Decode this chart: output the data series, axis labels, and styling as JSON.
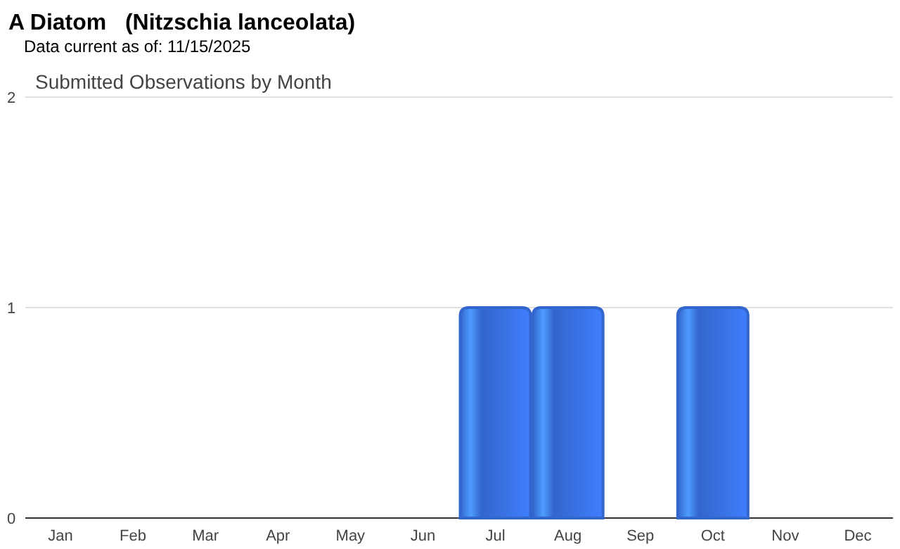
{
  "chart_data": {
    "type": "bar",
    "title": "A Diatom   (Nitzschia lanceolata)",
    "subtitle": "Data current as of: 11/15/2025",
    "annotations": [
      "Submitted Observations by Month"
    ],
    "categories": [
      "Jan",
      "Feb",
      "Mar",
      "Apr",
      "May",
      "Jun",
      "Jul",
      "Aug",
      "Sep",
      "Oct",
      "Nov",
      "Dec"
    ],
    "values": [
      0,
      0,
      0,
      0,
      0,
      0,
      1,
      1,
      0,
      1,
      0,
      0
    ],
    "color": "#3366cc",
    "ylim": [
      0,
      2
    ],
    "yticks": [
      0,
      1,
      2
    ],
    "grid": "y"
  }
}
